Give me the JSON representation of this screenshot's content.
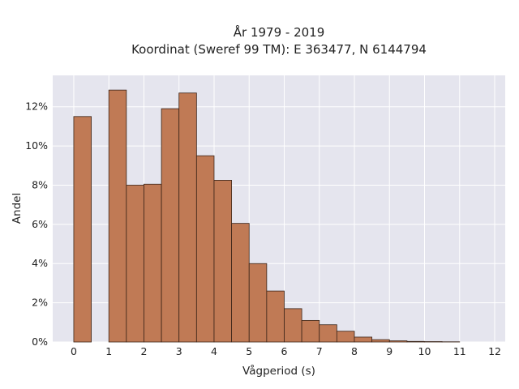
{
  "chart_data": {
    "type": "bar",
    "title": "År 1979 - 2019",
    "subtitle": "Koordinat (Sweref 99 TM): E 363477, N 6144794",
    "xlabel": "Vågperiod (s)",
    "ylabel": "Andel",
    "xlim": [
      -0.6,
      12.3
    ],
    "ylim": [
      0,
      13.6
    ],
    "x_ticks": [
      "0",
      "1",
      "2",
      "3",
      "4",
      "5",
      "6",
      "7",
      "8",
      "9",
      "10",
      "11",
      "12"
    ],
    "y_ticks": [
      "0%",
      "2%",
      "4%",
      "6%",
      "8%",
      "10%",
      "12%"
    ],
    "bin_width": 0.5,
    "bin_left_edges": [
      0,
      1,
      1.5,
      2,
      2.5,
      3,
      3.5,
      4,
      4.5,
      5,
      5.5,
      6,
      6.5,
      7,
      7.5,
      8,
      8.5,
      9,
      9.5,
      10,
      10.5
    ],
    "values": [
      11.5,
      12.85,
      8.0,
      8.05,
      11.9,
      12.7,
      9.5,
      8.25,
      6.05,
      4.0,
      2.6,
      1.7,
      1.1,
      0.88,
      0.55,
      0.25,
      0.12,
      0.06,
      0.03,
      0.02,
      0.01
    ],
    "bar_color": "#c07a55",
    "bar_edge_color": "#3a2418",
    "background_color": "#e5e5ee",
    "grid": true
  }
}
